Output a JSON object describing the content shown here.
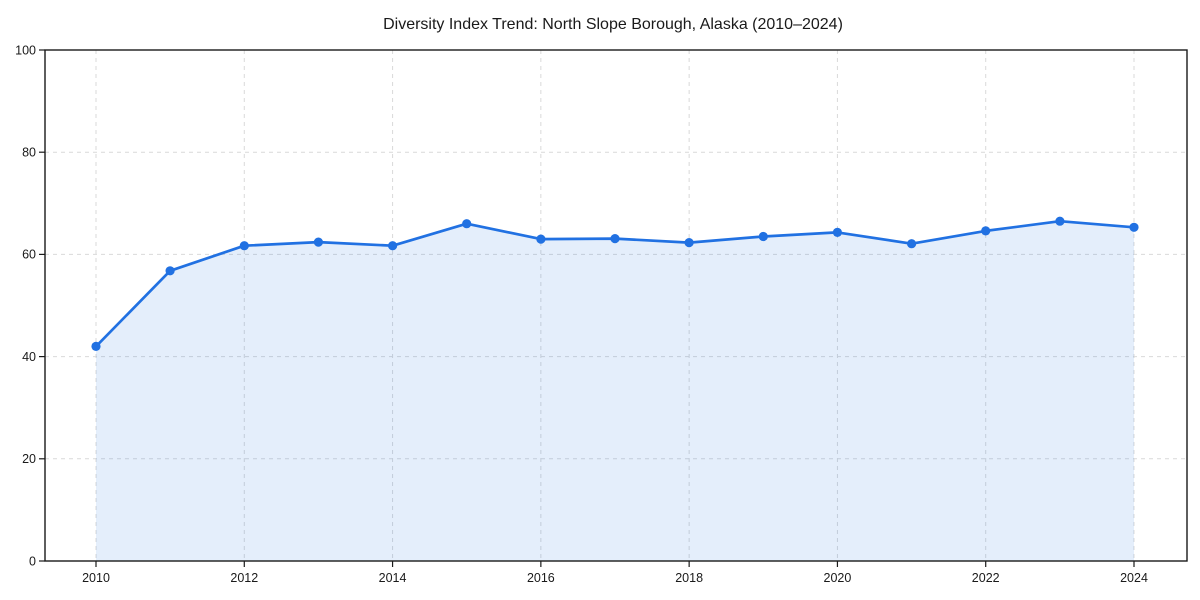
{
  "chart_data": {
    "type": "area",
    "title": "Diversity Index Trend: North Slope Borough, Alaska (2010–2024)",
    "x": [
      2010,
      2011,
      2012,
      2013,
      2014,
      2015,
      2016,
      2017,
      2018,
      2019,
      2020,
      2021,
      2022,
      2023,
      2024
    ],
    "series": [
      {
        "name": "Diversity Index",
        "values": [
          42.0,
          56.8,
          61.7,
          62.4,
          61.7,
          66.0,
          63.0,
          63.1,
          62.3,
          63.5,
          64.3,
          62.1,
          64.6,
          66.5,
          65.3
        ]
      }
    ],
    "xlabel": "",
    "ylabel": "",
    "ylim": [
      0,
      100
    ],
    "yticks": [
      0,
      20,
      40,
      60,
      80,
      100
    ],
    "xticks": [
      2010,
      2012,
      2014,
      2016,
      2018,
      2020,
      2022,
      2024
    ],
    "grid": true,
    "grid_style": "dashed",
    "legend_position": "none",
    "line_color": "#2171e2",
    "fill_color": "#e9effc",
    "fill_opacity": 0.12,
    "grid_color": "#d9d9d9",
    "axis_color": "#1a1a1a",
    "tick_label_color": "#1a1a1a",
    "title_color": "#1a1a1a"
  }
}
